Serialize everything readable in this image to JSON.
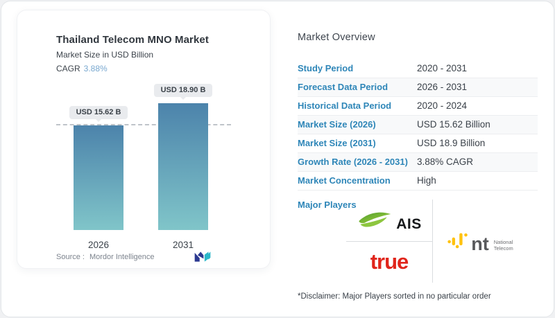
{
  "colors": {
    "accent-blue": "#2e86b8",
    "cagr-blue": "#79a8d0",
    "bar-top": "#4c83ab",
    "bar-bottom": "#80c5c9",
    "badge-bg": "#e9ebee",
    "ais-green": "#8dc63f",
    "ais-green-dark": "#4f9e2f",
    "true-red": "#e0251b",
    "nt-yellow": "#ffc20e",
    "nt-gray": "#58595b",
    "mordor-navy": "#2b3990",
    "mordor-teal": "#2bb7c9"
  },
  "chart_panel": {
    "title": "Thailand Telecom MNO Market",
    "subtitle": "Market Size in USD Billion",
    "cagr_label": "CAGR",
    "cagr_value": "3.88%",
    "source_label": "Source :",
    "source_value": "Mordor Intelligence"
  },
  "chart_data": {
    "type": "bar",
    "title": "Thailand Telecom MNO Market",
    "subtitle": "Market Size in USD Billion",
    "categories": [
      "2026",
      "2031"
    ],
    "values": [
      15.62,
      18.9
    ],
    "value_labels": [
      "USD 15.62 B",
      "USD 18.90 B"
    ],
    "unit": "USD Billion",
    "cagr": "3.88%",
    "xlabel": "",
    "ylabel": "Market Size in USD Billion",
    "ylim": [
      0,
      18.9
    ],
    "legend": "none",
    "grid": "single dashed horizontal reference line at 15.62 (2026 bar level)"
  },
  "overview": {
    "heading": "Market Overview",
    "rows": [
      {
        "label": "Study Period",
        "value": "2020 - 2031"
      },
      {
        "label": "Forecast Data Period",
        "value": "2026 - 2031"
      },
      {
        "label": "Historical Data Period",
        "value": "2020 - 2024"
      },
      {
        "label": "Market Size (2026)",
        "value": "USD 15.62 Billion"
      },
      {
        "label": "Market Size (2031)",
        "value": "USD 18.9 Billion"
      },
      {
        "label": "Growth Rate (2026 - 2031)",
        "value": "3.88% CAGR"
      },
      {
        "label": "Market Concentration",
        "value": "High"
      }
    ],
    "major_players_label": "Major Players",
    "players": [
      "AIS",
      "true",
      "nt (National Telecom)"
    ],
    "logos": {
      "ais": "AIS",
      "true_label": "true",
      "nt": "nt",
      "nt_caption_line1": "National",
      "nt_caption_line2": "Telecom"
    },
    "disclaimer": "*Disclaimer: Major Players sorted in no particular order"
  }
}
